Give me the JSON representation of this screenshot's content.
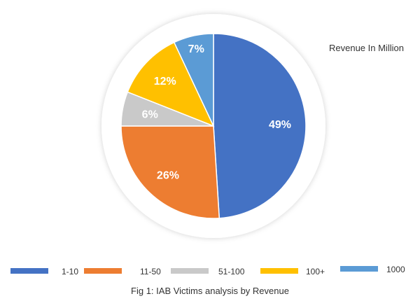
{
  "chart_data": {
    "type": "pie",
    "title": "Revenue In Million",
    "categories": [
      "1-10",
      "11-50",
      "51-100",
      "100+",
      "1000"
    ],
    "values": [
      49,
      26,
      6,
      12,
      7
    ],
    "value_labels": [
      "49%",
      "26%",
      "6%",
      "12%",
      "7%"
    ],
    "colors": [
      "#4472C4",
      "#ED7D31",
      "#C9C9C9",
      "#FFC000",
      "#5B9BD5"
    ],
    "legend_position": "bottom"
  },
  "caption": "Fig 1: IAB Victims analysis by Revenue"
}
